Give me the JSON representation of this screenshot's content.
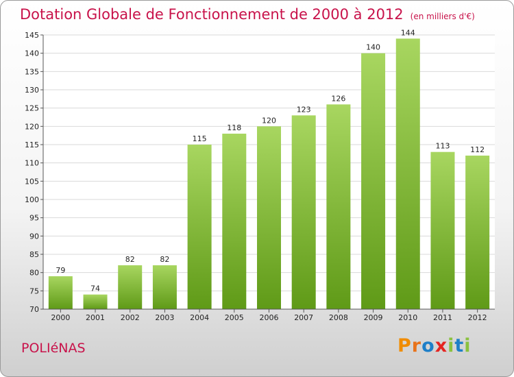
{
  "header": {
    "title": "Dotation Globale de Fonctionnement de 2000 à 2012",
    "unit": "(en milliers d'€)"
  },
  "footer": {
    "town": "POLIéNAS",
    "logo": [
      "P",
      "r",
      "o",
      "x",
      "i",
      "t",
      "i"
    ]
  },
  "colors": {
    "accent": "#c8124a",
    "bar_top": "#a8d660",
    "bar_bottom": "#5f9a17",
    "grid": "#d9d9d9",
    "logo": [
      "#f08c00",
      "#e8731b",
      "#1e7fc8",
      "#e52421",
      "#8ac13f",
      "#1e7fc8",
      "#8ac13f"
    ]
  },
  "chart_data": {
    "type": "bar",
    "title": "Dotation Globale de Fonctionnement de 2000 à 2012",
    "xlabel": "",
    "ylabel": "",
    "ylim": [
      70,
      145
    ],
    "yticks": [
      70,
      75,
      80,
      85,
      90,
      95,
      100,
      105,
      110,
      115,
      120,
      125,
      130,
      135,
      140,
      145
    ],
    "grid": true,
    "categories": [
      "2000",
      "2001",
      "2002",
      "2003",
      "2004",
      "2005",
      "2006",
      "2007",
      "2008",
      "2009",
      "2010",
      "2011",
      "2012"
    ],
    "values": [
      79,
      74,
      82,
      82,
      115,
      118,
      120,
      123,
      126,
      140,
      144,
      113,
      112
    ]
  }
}
